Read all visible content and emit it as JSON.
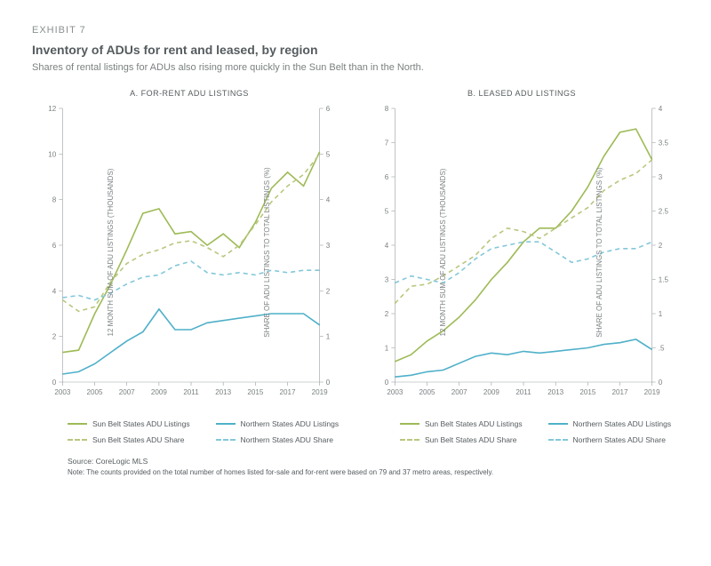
{
  "exhibit_label": "EXHIBIT 7",
  "title": "Inventory of ADUs for rent and leased, by region",
  "subtitle": "Shares of rental listings for ADUs also rising more quickly in the Sun Belt than in the North.",
  "panel_a": {
    "title": "A. FOR-RENT ADU LISTINGS",
    "type": "line",
    "x_years": [
      2003,
      2004,
      2005,
      2006,
      2007,
      2008,
      2009,
      2010,
      2011,
      2012,
      2013,
      2014,
      2015,
      2016,
      2017,
      2018,
      2019
    ],
    "x_ticks": [
      2003,
      2005,
      2007,
      2009,
      2011,
      2013,
      2015,
      2017,
      2019
    ],
    "left_axis": {
      "label": "12 MONTH SUM OF ADU LISTINGS (THOUSANDS)",
      "min": 0,
      "max": 12,
      "ticks": [
        0,
        2,
        4,
        6,
        8,
        10,
        12
      ]
    },
    "right_axis": {
      "label": "SHARE OF ADU LISTINGS TO TOTAL LISTINGS (%)",
      "min": 0,
      "max": 6,
      "ticks": [
        0,
        1,
        2,
        3,
        4,
        5,
        6
      ]
    },
    "series": {
      "sunbelt_listings": {
        "axis": "left",
        "style": "solid",
        "color": "#9ebb57",
        "values": [
          1.3,
          1.4,
          3.0,
          4.3,
          5.8,
          7.4,
          7.6,
          6.5,
          6.6,
          6.0,
          6.5,
          5.9,
          7.0,
          8.5,
          9.2,
          8.6,
          10.1
        ]
      },
      "northern_listings": {
        "axis": "left",
        "style": "solid",
        "color": "#4fb0c9",
        "values": [
          0.35,
          0.45,
          0.8,
          1.3,
          1.8,
          2.2,
          3.2,
          2.3,
          2.3,
          2.6,
          2.7,
          2.8,
          2.9,
          3.0,
          3.0,
          3.0,
          2.5
        ]
      },
      "sunbelt_share": {
        "axis": "right",
        "style": "dashed",
        "color": "#b9c77e",
        "values": [
          1.8,
          1.55,
          1.65,
          2.2,
          2.6,
          2.8,
          2.9,
          3.05,
          3.1,
          2.95,
          2.75,
          3.0,
          3.45,
          3.95,
          4.3,
          4.55,
          5.0
        ]
      },
      "northern_share": {
        "axis": "right",
        "style": "dashed",
        "color": "#83c8da",
        "values": [
          1.85,
          1.9,
          1.8,
          1.95,
          2.15,
          2.3,
          2.35,
          2.55,
          2.65,
          2.4,
          2.35,
          2.4,
          2.35,
          2.45,
          2.4,
          2.45,
          2.45
        ]
      }
    }
  },
  "panel_b": {
    "title": "B. LEASED ADU LISTINGS",
    "type": "line",
    "x_years": [
      2003,
      2004,
      2005,
      2006,
      2007,
      2008,
      2009,
      2010,
      2011,
      2012,
      2013,
      2014,
      2015,
      2016,
      2017,
      2018,
      2019
    ],
    "x_ticks": [
      2003,
      2005,
      2007,
      2009,
      2011,
      2013,
      2015,
      2017,
      2019
    ],
    "left_axis": {
      "label": "12 MONTH SUM OF ADU LISTINGS (THOUSANDS)",
      "min": 0,
      "max": 8,
      "ticks": [
        0,
        1,
        2,
        3,
        4,
        5,
        6,
        7,
        8
      ]
    },
    "right_axis": {
      "label": "SHARE OF ADU LISTINGS TO TOTAL LISTINGS (%)",
      "min": 0,
      "max": 4,
      "ticks": [
        0,
        0.5,
        1.0,
        1.5,
        2.0,
        2.5,
        3.0,
        3.5,
        4.0
      ]
    },
    "series": {
      "sunbelt_listings": {
        "axis": "left",
        "style": "solid",
        "color": "#9ebb57",
        "values": [
          0.6,
          0.8,
          1.2,
          1.5,
          1.9,
          2.4,
          3.0,
          3.5,
          4.1,
          4.5,
          4.5,
          5.0,
          5.7,
          6.6,
          7.3,
          7.4,
          6.5
        ]
      },
      "northern_listings": {
        "axis": "left",
        "style": "solid",
        "color": "#4fb0c9",
        "values": [
          0.15,
          0.2,
          0.3,
          0.35,
          0.55,
          0.75,
          0.85,
          0.8,
          0.9,
          0.85,
          0.9,
          0.95,
          1.0,
          1.1,
          1.15,
          1.25,
          0.95
        ]
      },
      "sunbelt_share": {
        "axis": "right",
        "style": "dashed",
        "color": "#b9c77e",
        "values": [
          1.15,
          1.4,
          1.43,
          1.55,
          1.7,
          1.85,
          2.1,
          2.25,
          2.2,
          2.1,
          2.25,
          2.4,
          2.55,
          2.8,
          2.95,
          3.05,
          3.25
        ]
      },
      "northern_share": {
        "axis": "right",
        "style": "dashed",
        "color": "#83c8da",
        "values": [
          1.45,
          1.55,
          1.5,
          1.45,
          1.6,
          1.8,
          1.95,
          2.0,
          2.05,
          2.05,
          1.9,
          1.75,
          1.8,
          1.9,
          1.95,
          1.95,
          2.05
        ]
      }
    }
  },
  "legend": {
    "items": [
      {
        "key": "sunbelt_listings",
        "label": "Sun Belt States ADU Listings",
        "color": "#9ebb57",
        "style": "solid"
      },
      {
        "key": "northern_listings",
        "label": "Northern States ADU Listings",
        "color": "#4fb0c9",
        "style": "solid"
      },
      {
        "key": "sunbelt_share",
        "label": "Sun Belt States ADU Share",
        "color": "#b9c77e",
        "style": "dashed"
      },
      {
        "key": "northern_share",
        "label": "Northern States ADU Share",
        "color": "#83c8da",
        "style": "dashed"
      }
    ]
  },
  "source": "Source: CoreLogic MLS",
  "note": "Note: The counts provided on the total number of homes listed for-sale and for-rent were based on 79 and 37 metro areas, respectively.",
  "style": {
    "background_color": "#ffffff",
    "axis_color": "#9aa0a2",
    "tick_fontsize": 8,
    "title_fontsize": 14,
    "line_width": 1.6
  }
}
